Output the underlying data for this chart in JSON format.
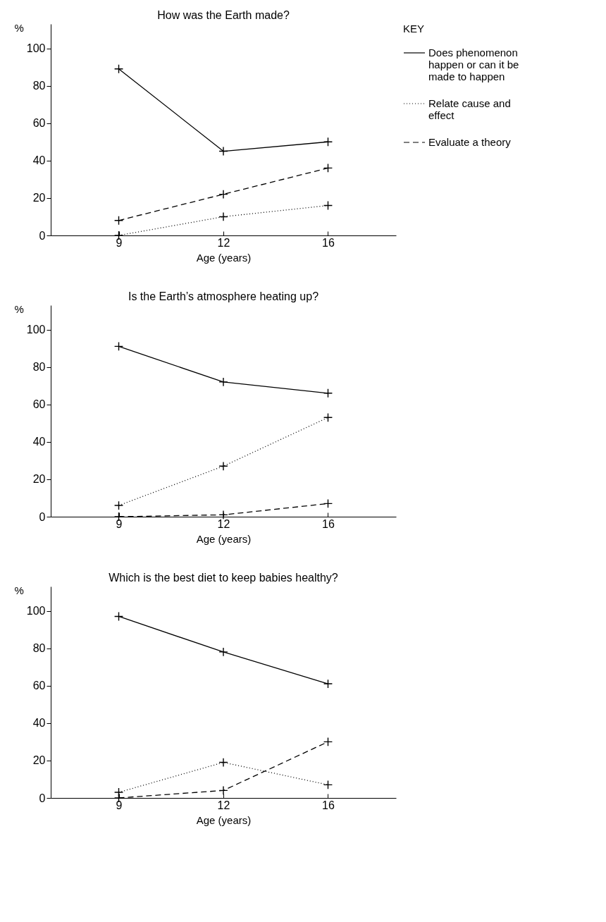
{
  "chart_data": [
    {
      "type": "line",
      "title": "How was the Earth made?",
      "xlabel": "Age (years)",
      "ylabel": "%",
      "categories": [
        "9",
        "12",
        "16"
      ],
      "ylim": [
        0,
        113
      ],
      "yticks": [
        0,
        20,
        40,
        60,
        80,
        100
      ],
      "grid": false,
      "marker": "cross",
      "legend": "top right",
      "legend_title": "KEY",
      "series": [
        {
          "name": "Does phenomenon happen or can it be made to happen",
          "color": "#000000",
          "line_style": "solid",
          "values": [
            89,
            45,
            50
          ]
        },
        {
          "name": "Relate cause and effect",
          "color": "#000000",
          "line_style": "dotted",
          "values": [
            0,
            10,
            16
          ]
        },
        {
          "name": "Evaluate a theory",
          "color": "#000000",
          "line_style": "dashed",
          "values": [
            8,
            22,
            36
          ]
        }
      ]
    },
    {
      "type": "line",
      "title": "Is the Earth’s atmosphere heating up?",
      "xlabel": "Age (years)",
      "ylabel": "%",
      "categories": [
        "9",
        "12",
        "16"
      ],
      "ylim": [
        0,
        113
      ],
      "yticks": [
        0,
        20,
        40,
        60,
        80,
        100
      ],
      "grid": false,
      "marker": "cross",
      "series": [
        {
          "color": "#000000",
          "line_style": "solid",
          "values": [
            91,
            72,
            66
          ]
        },
        {
          "color": "#000000",
          "line_style": "dotted",
          "values": [
            6,
            27,
            53
          ]
        },
        {
          "color": "#000000",
          "line_style": "dashed",
          "values": [
            0,
            1,
            7
          ]
        }
      ]
    },
    {
      "type": "line",
      "title": "Which is the best diet to keep babies healthy?",
      "xlabel": "Age (years)",
      "ylabel": "%",
      "categories": [
        "9",
        "12",
        "16"
      ],
      "ylim": [
        0,
        113
      ],
      "yticks": [
        0,
        20,
        40,
        60,
        80,
        100
      ],
      "grid": false,
      "marker": "cross",
      "series": [
        {
          "color": "#000000",
          "line_style": "solid",
          "values": [
            97,
            78,
            61
          ]
        },
        {
          "color": "#000000",
          "line_style": "dotted",
          "values": [
            3,
            19,
            7
          ]
        },
        {
          "color": "#000000",
          "line_style": "dashed",
          "values": [
            0,
            4,
            30
          ]
        }
      ]
    }
  ]
}
